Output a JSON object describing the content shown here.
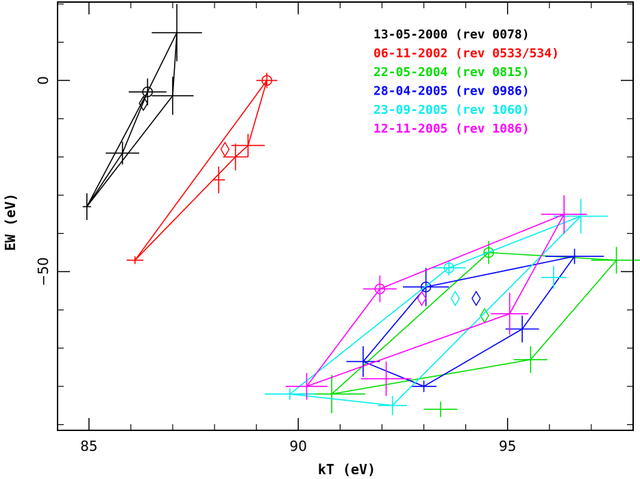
{
  "chart_data": {
    "type": "scatter",
    "xlabel": "kT (eV)",
    "ylabel": "EW (eV)",
    "xlim": [
      84.25,
      98.0
    ],
    "ylim": [
      -91.5,
      20.5
    ],
    "xticks": [
      85,
      90,
      95
    ],
    "yticks": [
      0,
      -50
    ],
    "x_tick_labels": [
      "85",
      "90",
      "95"
    ],
    "y_tick_labels": [
      "0",
      "−50"
    ],
    "grid": false,
    "legend_position": "top-right",
    "series": [
      {
        "name": "13-05-2000 (rev 0078)",
        "color": "#000000",
        "points": [
          {
            "x": 84.95,
            "y": -33.0,
            "xerr": 0.1,
            "yerr": 3.5
          },
          {
            "x": 85.8,
            "y": -19.0,
            "xerr": 0.4,
            "yerr": 3.0
          },
          {
            "x": 86.4,
            "y": -3.0,
            "xerr": 0.45,
            "yerr": 3.5,
            "marker": "circle"
          },
          {
            "x": 87.0,
            "y": -4.0,
            "xerr": 0.5,
            "yerr": 5.0
          },
          {
            "x": 87.1,
            "y": 12.5,
            "xerr": 0.6,
            "yerr": 7.5
          }
        ],
        "diamond": {
          "x": 86.3,
          "y": -6.0
        },
        "path": [
          [
            84.95,
            -33.0
          ],
          [
            86.4,
            -3.0
          ],
          [
            87.1,
            12.5
          ],
          [
            87.0,
            -4.0
          ],
          [
            84.95,
            -33.0
          ],
          [
            85.8,
            -19.0
          ],
          [
            86.4,
            -3.0
          ]
        ]
      },
      {
        "name": "06-11-2002 (rev 0533/534)",
        "color": "#ff0000",
        "points": [
          {
            "x": 86.1,
            "y": -47.0,
            "xerr": 0.2,
            "yerr": 1.0
          },
          {
            "x": 88.1,
            "y": -26.0,
            "xerr": 0.15,
            "yerr": 3.5
          },
          {
            "x": 88.5,
            "y": -20.0,
            "xerr": 0.3,
            "yerr": 3.5
          },
          {
            "x": 88.8,
            "y": -17.0,
            "xerr": 0.4,
            "yerr": 3.0
          },
          {
            "x": 89.25,
            "y": 0.0,
            "xerr": 0.25,
            "yerr": 2.0,
            "marker": "circle"
          }
        ],
        "diamond": {
          "x": 88.25,
          "y": -18.0
        },
        "path": [
          [
            86.1,
            -47.0
          ],
          [
            89.25,
            0.0
          ],
          [
            88.8,
            -17.0
          ],
          [
            88.5,
            -20.0
          ],
          [
            86.1,
            -47.0
          ]
        ]
      },
      {
        "name": "22-05-2004 (rev 0815)",
        "color": "#00dd00",
        "points": [
          {
            "x": 94.55,
            "y": -45.0,
            "xerr": 0.1,
            "yerr": 3.0,
            "marker": "circle"
          },
          {
            "x": 97.6,
            "y": -47.0,
            "xerr": 0.6,
            "yerr": 3.5
          },
          {
            "x": 95.55,
            "y": -73.0,
            "xerr": 0.4,
            "yerr": 3.5
          },
          {
            "x": 93.4,
            "y": -86.0,
            "xerr": 0.4,
            "yerr": 2.0
          },
          {
            "x": 90.8,
            "y": -82.0,
            "xerr": 0.8,
            "yerr": 5.0
          }
        ],
        "diamond": {
          "x": 94.45,
          "y": -61.5
        },
        "path": [
          [
            94.55,
            -45.0
          ],
          [
            97.6,
            -47.0
          ],
          [
            95.55,
            -73.0
          ],
          [
            90.8,
            -82.0
          ],
          [
            94.55,
            -45.0
          ]
        ]
      },
      {
        "name": "28-04-2005 (rev 0986)",
        "color": "#0000ff",
        "points": [
          {
            "x": 93.05,
            "y": -54.0,
            "xerr": 0.55,
            "yerr": 5.0,
            "marker": "circle"
          },
          {
            "x": 96.6,
            "y": -46.0,
            "xerr": 0.7,
            "yerr": 2.0
          },
          {
            "x": 95.35,
            "y": -65.0,
            "xerr": 0.4,
            "yerr": 3.5
          },
          {
            "x": 93.0,
            "y": -80.0,
            "xerr": 0.3,
            "yerr": 1.5
          },
          {
            "x": 91.55,
            "y": -73.5,
            "xerr": 0.4,
            "yerr": 4.0
          }
        ],
        "diamond": {
          "x": 94.25,
          "y": -57.0
        },
        "path": [
          [
            93.05,
            -54.0
          ],
          [
            96.6,
            -46.0
          ],
          [
            95.35,
            -65.0
          ],
          [
            93.0,
            -80.0
          ],
          [
            91.55,
            -73.5
          ],
          [
            93.05,
            -54.0
          ]
        ]
      },
      {
        "name": "23-09-2005 (rev 1060)",
        "color": "#00eeee",
        "points": [
          {
            "x": 93.6,
            "y": -49.0,
            "xerr": 0.4,
            "yerr": 2.0,
            "marker": "circle"
          },
          {
            "x": 96.75,
            "y": -35.5,
            "xerr": 0.65,
            "yerr": 4.5
          },
          {
            "x": 96.1,
            "y": -51.5,
            "xerr": 0.3,
            "yerr": 3.0
          },
          {
            "x": 92.25,
            "y": -85.0,
            "xerr": 0.35,
            "yerr": 2.5
          },
          {
            "x": 89.8,
            "y": -82.0,
            "xerr": 0.6,
            "yerr": 1.5
          }
        ],
        "diamond": {
          "x": 93.75,
          "y": -57.0
        },
        "path": [
          [
            93.6,
            -49.0
          ],
          [
            96.75,
            -35.5
          ],
          [
            92.25,
            -85.0
          ],
          [
            89.8,
            -82.0
          ],
          [
            93.6,
            -49.0
          ]
        ]
      },
      {
        "name": "12-11-2005 (rev 1086)",
        "color": "#ff00ff",
        "points": [
          {
            "x": 91.95,
            "y": -54.5,
            "xerr": 0.4,
            "yerr": 3.5,
            "marker": "circle"
          },
          {
            "x": 96.35,
            "y": -35.0,
            "xerr": 0.55,
            "yerr": 5.0
          },
          {
            "x": 95.05,
            "y": -61.0,
            "xerr": 0.45,
            "yerr": 5.5
          },
          {
            "x": 92.1,
            "y": -78.0,
            "xerr": 0.6,
            "yerr": 4.5
          },
          {
            "x": 90.2,
            "y": -80.0,
            "xerr": 0.5,
            "yerr": 3.5
          }
        ],
        "diamond": {
          "x": 92.95,
          "y": -57.0
        },
        "path": [
          [
            91.95,
            -54.5
          ],
          [
            96.35,
            -35.0
          ],
          [
            95.05,
            -61.0
          ],
          [
            90.2,
            -80.0
          ],
          [
            91.95,
            -54.5
          ]
        ]
      }
    ]
  }
}
